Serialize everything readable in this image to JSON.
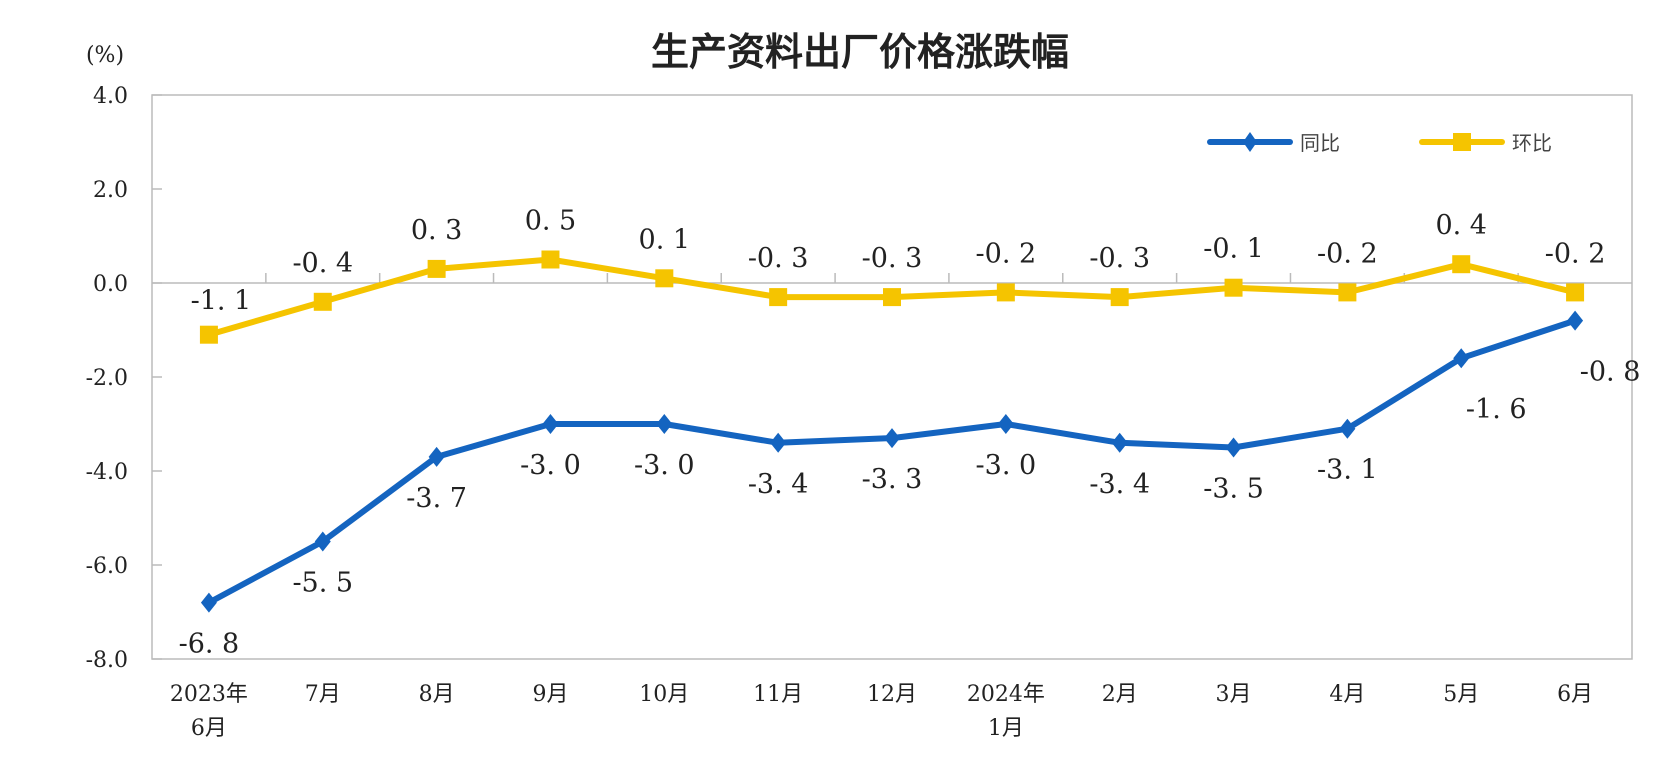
{
  "chart_data": {
    "type": "line",
    "title": "生产资料出厂价格涨跌幅",
    "ylabel": "(%)",
    "ylim": [
      -8,
      4
    ],
    "yticks": [
      "4.0",
      "2.0",
      "0.0",
      "-2.0",
      "-4.0",
      "-6.0",
      "-8.0"
    ],
    "categories": [
      [
        "2023年",
        "6月"
      ],
      [
        "7月"
      ],
      [
        "8月"
      ],
      [
        "9月"
      ],
      [
        "10月"
      ],
      [
        "11月"
      ],
      [
        "12月"
      ],
      [
        "2024年",
        "1月"
      ],
      [
        "2月"
      ],
      [
        "3月"
      ],
      [
        "4月"
      ],
      [
        "5月"
      ],
      [
        "6月"
      ]
    ],
    "series": [
      {
        "name": "同比",
        "color": "#1464c0",
        "marker": "diamond",
        "values": [
          -6.8,
          -5.5,
          -3.7,
          -3.0,
          -3.0,
          -3.4,
          -3.3,
          -3.0,
          -3.4,
          -3.5,
          -3.1,
          -1.6,
          -0.8
        ],
        "labels": [
          "-6. 8",
          "-5. 5",
          "-3. 7",
          "-3. 0",
          "-3. 0",
          "-3. 4",
          "-3. 3",
          "-3. 0",
          "-3. 4",
          "-3. 5",
          "-3. 1",
          "-1. 6",
          "-0. 8"
        ]
      },
      {
        "name": "环比",
        "color": "#f5c400",
        "marker": "square",
        "values": [
          -1.1,
          -0.4,
          0.3,
          0.5,
          0.1,
          -0.3,
          -0.3,
          -0.2,
          -0.3,
          -0.1,
          -0.2,
          0.4,
          -0.2
        ],
        "labels": [
          "-1. 1",
          "-0. 4",
          "0. 3",
          "0. 5",
          "0. 1",
          "-0. 3",
          "-0. 3",
          "-0. 2",
          "-0. 3",
          "-0. 1",
          "-0. 2",
          "0. 4",
          "-0. 2"
        ]
      }
    ],
    "grid": false,
    "legend": "top-right"
  }
}
